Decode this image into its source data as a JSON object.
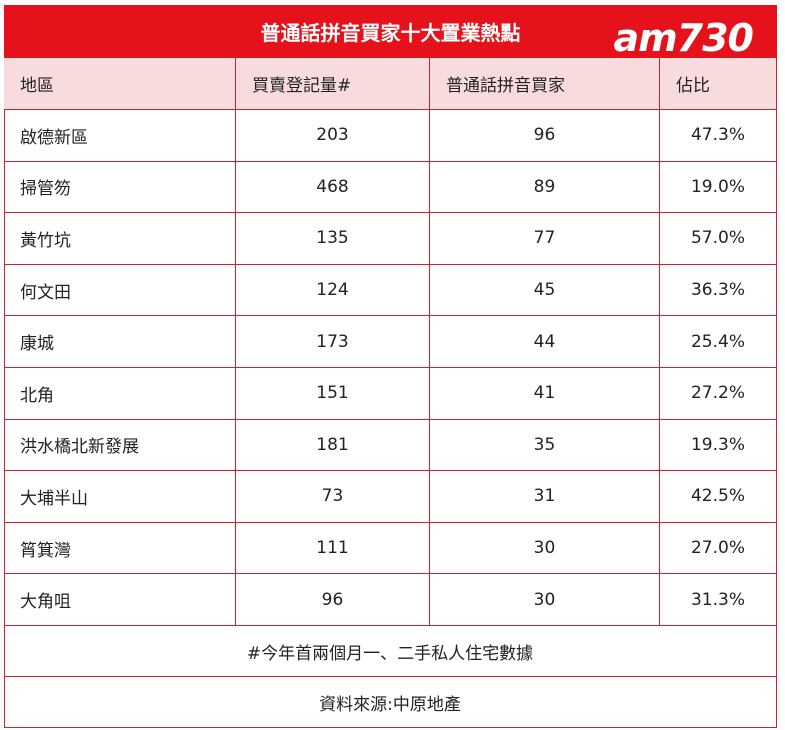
{
  "title": "普通話拼音買家十大置業熱點",
  "logo": "am730",
  "table": {
    "header": [
      "地區",
      "買賣登記量#",
      "普通話拼音買家",
      "佔比"
    ],
    "rows": [
      [
        "啟德新區",
        203,
        96,
        "47.3%"
      ],
      [
        "掃管笏",
        468,
        89,
        "19.0%"
      ],
      [
        "黃竹坑",
        135,
        77,
        "57.0%"
      ],
      [
        "何文田",
        124,
        45,
        "36.3%"
      ],
      [
        "康城",
        173,
        44,
        "25.4%"
      ],
      [
        "北角",
        151,
        41,
        "27.2%"
      ],
      [
        "洪水橋北新發展",
        181,
        35,
        "19.3%"
      ],
      [
        "大埔半山",
        73,
        31,
        "42.5%"
      ],
      [
        "筲箕灣",
        111,
        30,
        "27.0%"
      ],
      [
        "大角咀",
        96,
        30,
        "31.3%"
      ]
    ]
  },
  "notes": [
    "#今年首兩個月一、二手私人住宅數據",
    "資料來源:中原地產"
  ]
}
